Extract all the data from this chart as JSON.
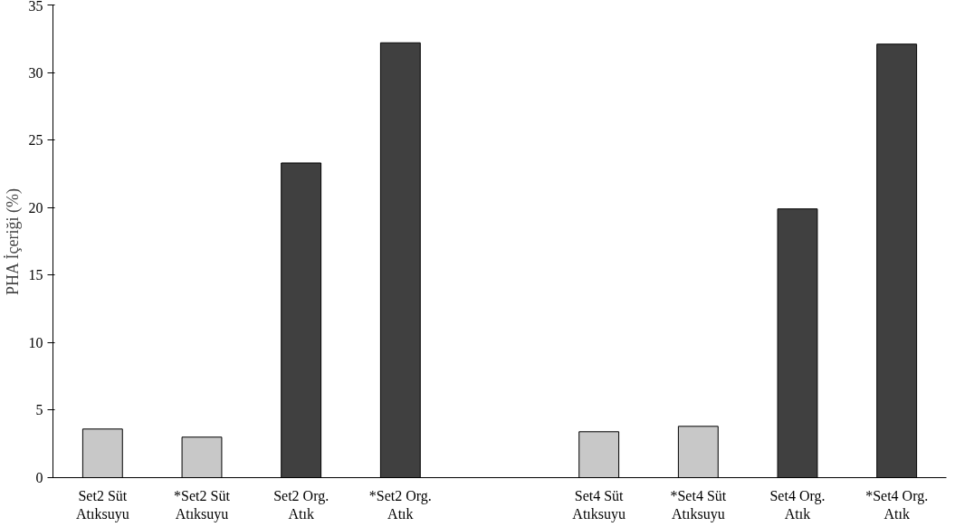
{
  "chart_data": {
    "type": "bar",
    "ylabel": "PHA İçeriği (%)",
    "categories": [
      "Set2 Süt Atıksuyu",
      "*Set2 Süt Atıksuyu",
      "Set2 Org. Atık",
      "*Set2 Org. Atık",
      null,
      "Set4 Süt Atıksuyu",
      "*Set4 Süt Atıksuyu",
      "Set4 Org. Atık",
      "*Set4 Org. Atık"
    ],
    "values": [
      3.6,
      3.0,
      23.3,
      32.2,
      null,
      3.4,
      3.8,
      19.9,
      32.1
    ],
    "colors": [
      "#c8c8c8",
      "#c8c8c8",
      "#404040",
      "#404040",
      "#ffffff",
      "#c8c8c8",
      "#c8c8c8",
      "#404040",
      "#404040"
    ],
    "ylim": [
      0,
      35
    ],
    "yticks": [
      0,
      5,
      10,
      15,
      20,
      25,
      30,
      35
    ],
    "grid": false
  }
}
